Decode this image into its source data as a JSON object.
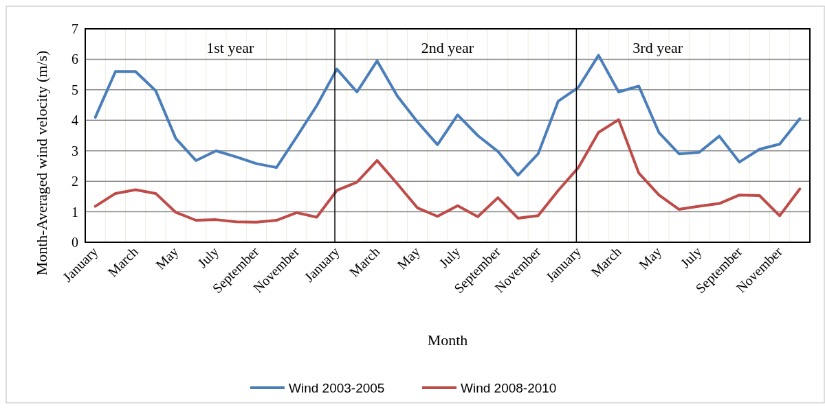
{
  "chart_data": {
    "type": "line",
    "xlabel": "Month",
    "ylabel": "Month-Averaged wind velocity (m/s)",
    "categories": [
      "January",
      null,
      "March",
      null,
      "May",
      null,
      "July",
      null,
      "September",
      null,
      "November",
      null,
      "January",
      null,
      "March",
      null,
      "May",
      null,
      "July",
      null,
      "September",
      null,
      "November",
      null,
      "January",
      null,
      "March",
      null,
      "May",
      null,
      "July",
      null,
      "September",
      null,
      "November",
      null
    ],
    "series": [
      {
        "name": "Wind 2003-2005",
        "color": "#4a7ebb",
        "values": [
          4.1,
          5.6,
          5.6,
          4.97,
          3.4,
          2.68,
          3.0,
          2.8,
          2.58,
          2.45,
          3.45,
          4.48,
          5.68,
          4.93,
          5.95,
          4.8,
          3.95,
          3.2,
          4.18,
          3.5,
          2.98,
          2.2,
          2.9,
          4.63,
          5.08,
          6.13,
          4.93,
          5.12,
          3.6,
          2.9,
          2.95,
          3.48,
          2.63,
          3.05,
          3.22,
          4.05
        ]
      },
      {
        "name": "Wind 2008-2010",
        "color": "#be4b48",
        "values": [
          1.18,
          1.6,
          1.72,
          1.6,
          0.98,
          0.72,
          0.74,
          0.67,
          0.66,
          0.72,
          0.97,
          0.82,
          1.7,
          1.97,
          2.68,
          1.92,
          1.13,
          0.85,
          1.2,
          0.84,
          1.46,
          0.79,
          0.87,
          1.7,
          2.45,
          3.6,
          4.02,
          2.27,
          1.55,
          1.08,
          1.18,
          1.27,
          1.55,
          1.53,
          0.87,
          1.75
        ]
      }
    ],
    "ylim": [
      0,
      7
    ],
    "yticks": [
      0,
      1,
      2,
      3,
      4,
      5,
      6,
      7
    ],
    "grid": true,
    "legend": "bottom",
    "marker": "none",
    "line_style": "solid",
    "annotations": [
      "1st year",
      "2nd year",
      "3rd year"
    ]
  }
}
